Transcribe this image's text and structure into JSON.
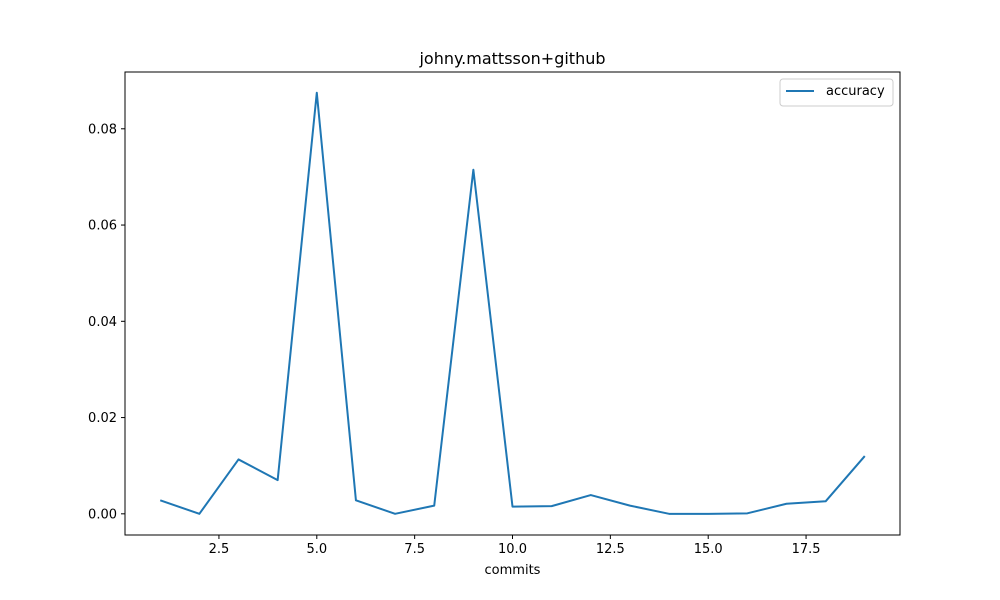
{
  "chart_data": {
    "type": "line",
    "title": "johny.mattsson+github",
    "xlabel": "commits",
    "ylabel": "",
    "xlim": [
      0.1,
      19.9
    ],
    "ylim": [
      -0.0044,
      0.0918
    ],
    "xticks": [
      2.5,
      5.0,
      7.5,
      10.0,
      12.5,
      15.0,
      17.5
    ],
    "xtick_labels": [
      "2.5",
      "5.0",
      "7.5",
      "10.0",
      "12.5",
      "15.0",
      "17.5"
    ],
    "yticks": [
      0.0,
      0.02,
      0.04,
      0.06,
      0.08
    ],
    "ytick_labels": [
      "0.00",
      "0.02",
      "0.04",
      "0.06",
      "0.08"
    ],
    "grid": false,
    "legend_position": "top-right",
    "series": [
      {
        "name": "accuracy",
        "color": "#1f77b4",
        "x": [
          1,
          2,
          3,
          4,
          5,
          6,
          7,
          8,
          9,
          10,
          11,
          12,
          13,
          14,
          15,
          16,
          17,
          18,
          19
        ],
        "y": [
          0.0028,
          0.0,
          0.0113,
          0.007,
          0.0875,
          0.0028,
          0.0,
          0.0017,
          0.0715,
          0.0015,
          0.0016,
          0.0039,
          0.0017,
          0.0,
          0.0,
          0.0001,
          0.0021,
          0.0026,
          0.012
        ]
      }
    ]
  }
}
